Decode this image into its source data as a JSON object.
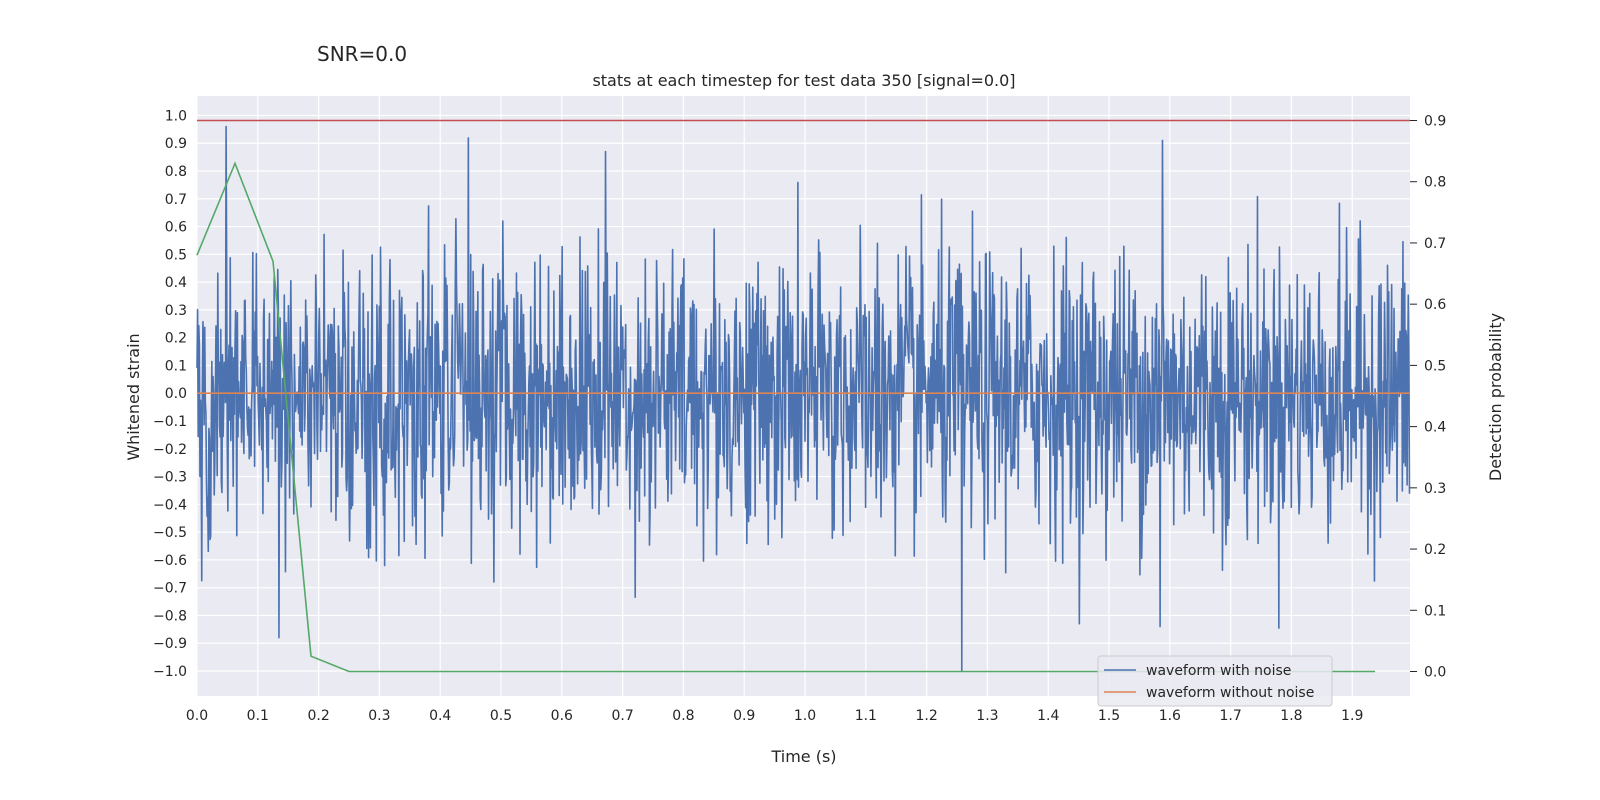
{
  "suptitle": "SNR=0.0",
  "chart_data": {
    "type": "line",
    "title": "stats at each timestep for test data 350 [signal=0.0]",
    "xlabel": "Time (s)",
    "ylabel": "Whitened strain",
    "ylabel_right": "Detection probability",
    "xlim": [
      0.0,
      1.995
    ],
    "ylim": [
      -1.09,
      1.07
    ],
    "ylim_right": [
      -0.04,
      0.94
    ],
    "xticks": [
      "0.0",
      "0.1",
      "0.2",
      "0.3",
      "0.4",
      "0.5",
      "0.6",
      "0.7",
      "0.8",
      "0.9",
      "1.0",
      "1.1",
      "1.2",
      "1.3",
      "1.4",
      "1.5",
      "1.6",
      "1.7",
      "1.8",
      "1.9"
    ],
    "yticks": [
      "1.0",
      "0.9",
      "0.8",
      "0.7",
      "0.6",
      "0.5",
      "0.4",
      "0.3",
      "0.2",
      "0.1",
      "0.0",
      "-0.1",
      "-0.2",
      "-0.3",
      "-0.4",
      "-0.5",
      "-0.6",
      "-0.7",
      "-0.8",
      "-0.9",
      "-1.0"
    ],
    "yticks_right": [
      "0.9",
      "0.8",
      "0.7",
      "0.6",
      "0.5",
      "0.4",
      "0.3",
      "0.2",
      "0.1",
      "0.0"
    ],
    "grid": true,
    "legend_position": "lower right",
    "series": [
      {
        "name": "waveform with noise",
        "axis": "left",
        "color": "#4c72b0",
        "description": "dense noisy strain series, approximately zero-mean, std ~0.25, 2048 samples over 0-2 s",
        "samples": 2048,
        "duration": 2.0,
        "std": 0.25,
        "peaks": [
          {
            "x": 0.048,
            "y": 0.96
          },
          {
            "x": 0.135,
            "y": -0.88
          },
          {
            "x": 0.672,
            "y": 0.87
          },
          {
            "x": 1.258,
            "y": -1.0
          },
          {
            "x": 1.588,
            "y": 0.91
          },
          {
            "x": 1.584,
            "y": -0.84
          }
        ]
      },
      {
        "name": "waveform without noise",
        "axis": "left",
        "color": "#dd8452",
        "x": [
          0.0,
          1.995
        ],
        "y": [
          0.0,
          0.0
        ]
      },
      {
        "name": "detection probability",
        "axis": "right",
        "color": "#55a868",
        "x": [
          0.0,
          0.0625,
          0.125,
          0.1875,
          0.25,
          1.9375
        ],
        "y": [
          0.68,
          0.83,
          0.67,
          0.025,
          0.0,
          0.0
        ]
      },
      {
        "name": "threshold",
        "axis": "right",
        "color": "#c44e52",
        "x": [
          0.0,
          1.995
        ],
        "y": [
          0.9,
          0.9
        ]
      }
    ],
    "legend": [
      {
        "label": "waveform with noise",
        "color": "#4c72b0"
      },
      {
        "label": "waveform without noise",
        "color": "#dd8452"
      }
    ]
  }
}
